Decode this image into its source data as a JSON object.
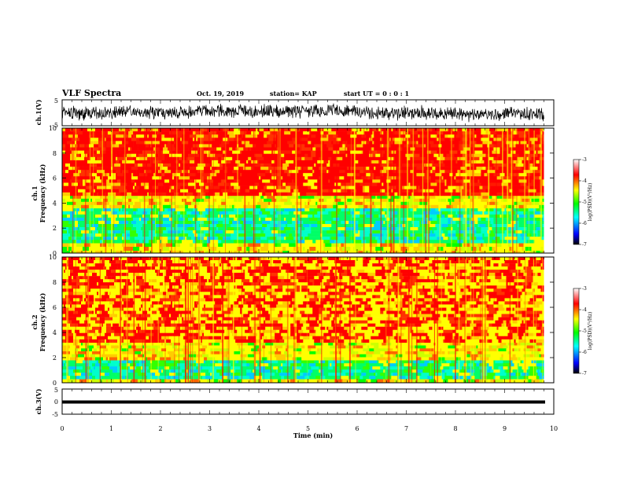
{
  "header": {
    "title": "VLF Spectra",
    "date": "Oct. 19, 2019",
    "station": "station= KAP",
    "start": "start UT =  0 : 0  : 1"
  },
  "colors": {
    "background": "#ffffff",
    "axis": "#000000",
    "spectrogram_low": "#00d0ff",
    "spectrogram_mid": "#ffff00",
    "spectrogram_high": "#ff0000",
    "blank": "#ffffff"
  },
  "chart_data": [
    {
      "id": "ch1-waveform",
      "type": "line",
      "ylabel": "ch.1(V)",
      "ylim": [
        -5,
        5
      ],
      "yticks": [
        "5",
        "-5"
      ],
      "xlim": [
        0,
        10
      ],
      "approx_envelope_volts": [
        -3,
        3
      ]
    },
    {
      "id": "ch1-spectrogram",
      "type": "heatmap",
      "ylabel_line1": "ch.1",
      "ylabel_line2": "Frequency  (kHz)",
      "ylim": [
        0,
        10
      ],
      "yticks": [
        "0",
        "2",
        "4",
        "6",
        "8",
        "10"
      ],
      "xlim": [
        0,
        10
      ],
      "data_end_min": 9.8,
      "bands_khz": [
        {
          "from": 0,
          "to": 0.2,
          "level": "mid"
        },
        {
          "from": 0.2,
          "to": 0.8,
          "level": "mid"
        },
        {
          "from": 0.8,
          "to": 3.6,
          "level": "low"
        },
        {
          "from": 3.6,
          "to": 4.6,
          "level": "mid"
        },
        {
          "from": 4.6,
          "to": 10,
          "level": "high"
        }
      ],
      "colorbar": {
        "label": "log(PSD)(V²/Hz)",
        "ticks": [
          "-3",
          "-4",
          "-5",
          "-6",
          "-7"
        ],
        "range": [
          -7,
          -3
        ]
      }
    },
    {
      "id": "ch2-spectrogram",
      "type": "heatmap",
      "ylabel_line1": "ch.2",
      "ylabel_line2": "Frequency  (kHz)",
      "ylim": [
        0,
        10
      ],
      "yticks": [
        "0",
        "2",
        "4",
        "6",
        "8",
        "10"
      ],
      "xlim": [
        0,
        10
      ],
      "data_end_min": 9.8,
      "bands_khz": [
        {
          "from": 0,
          "to": 0.3,
          "level": "mid"
        },
        {
          "from": 0.3,
          "to": 1.8,
          "level": "low"
        },
        {
          "from": 1.8,
          "to": 3.2,
          "level": "mid"
        },
        {
          "from": 3.2,
          "to": 10,
          "level": "high-mixed"
        }
      ],
      "colorbar": {
        "label": "log(PSD)(V²/Hz)",
        "ticks": [
          "-3",
          "-4",
          "-5",
          "-6",
          "-7"
        ],
        "range": [
          -7,
          -3
        ]
      }
    },
    {
      "id": "ch3-waveform",
      "type": "line",
      "ylabel": "ch.3(V)",
      "ylim": [
        -5,
        5
      ],
      "yticks": [
        "5",
        "0",
        "-5"
      ],
      "xlim": [
        0,
        10
      ],
      "approx_level_volts": 0
    }
  ],
  "xaxis": {
    "label": "Time  (min)",
    "ticks": [
      "0",
      "1",
      "2",
      "3",
      "4",
      "5",
      "6",
      "7",
      "8",
      "9",
      "10"
    ],
    "range": [
      0,
      10
    ]
  }
}
